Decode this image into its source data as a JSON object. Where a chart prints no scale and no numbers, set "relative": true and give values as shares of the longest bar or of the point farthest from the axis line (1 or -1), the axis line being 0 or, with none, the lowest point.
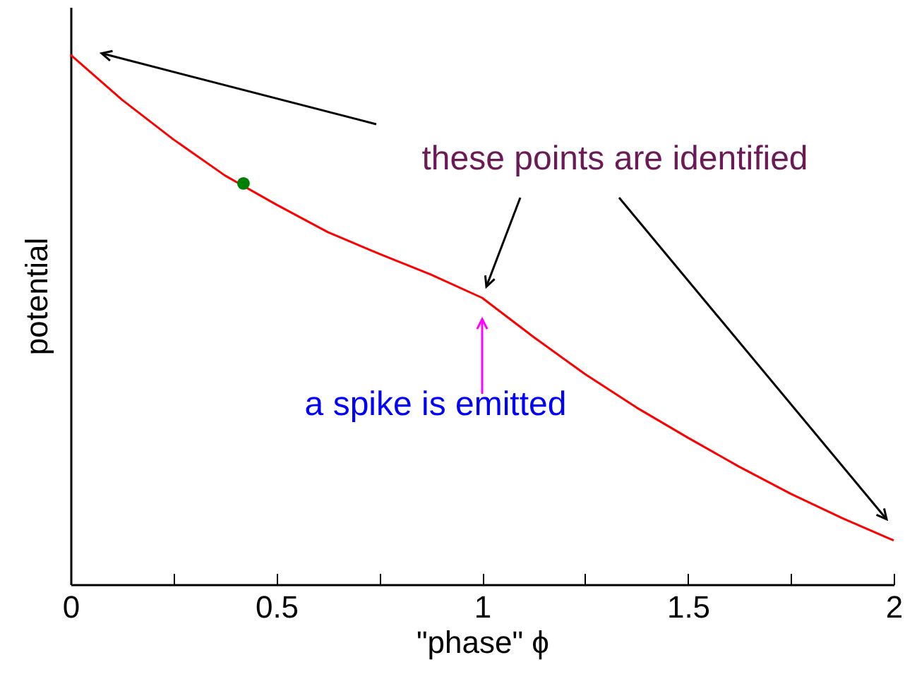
{
  "chart_data": {
    "type": "line",
    "relative": true,
    "xlabel": "\"phase\" ϕ",
    "ylabel": "potential",
    "xlim": [
      0,
      2
    ],
    "xticks": [
      0,
      {
        "value": 0.25,
        "label": null
      },
      0.5,
      {
        "value": 0.75,
        "label": null
      },
      1,
      {
        "value": 1.25,
        "label": null
      },
      1.5,
      {
        "value": 1.75,
        "label": null
      },
      2
    ],
    "tick_labels": "x",
    "grid": false,
    "series": [
      {
        "color": "#ff0000",
        "marker": "none",
        "x": [
          0,
          0.125,
          0.25,
          0.375,
          0.5,
          0.625,
          0.75,
          0.875,
          1,
          1.125,
          1.25,
          1.375,
          1.5,
          1.625,
          1.75,
          1.875,
          2
        ],
        "values": [
          1.0,
          0.915,
          0.84,
          0.772,
          0.717,
          0.665,
          0.624,
          0.585,
          0.541,
          0.467,
          0.397,
          0.334,
          0.277,
          0.222,
          0.171,
          0.125,
          0.083
        ]
      },
      {
        "type": "scatter",
        "color": "#008000",
        "marker": "circle",
        "x": [
          0.42
        ],
        "values": [
          0.757
        ]
      }
    ],
    "annotations": [
      {
        "text": "these points are identified",
        "x": 1,
        "y": 0.541
      },
      "a spike is emitted"
    ]
  }
}
